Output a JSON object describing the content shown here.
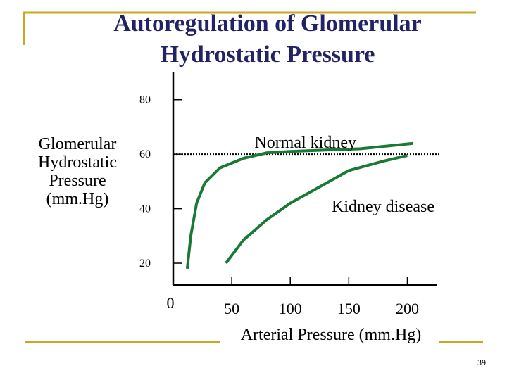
{
  "slide": {
    "title": "Autoregulation of Glomerular Hydrostatic Pressure",
    "page_number": "39",
    "accent_color": "#c8a820",
    "title_color": "#222266"
  },
  "chart_data": {
    "type": "line",
    "title": "Autoregulation of Glomerular Hydrostatic Pressure",
    "xlabel": "Arterial Pressure (mm.Hg)",
    "ylabel": "Glomerular Hydrostatic Pressure (mm.Hg)",
    "ylabel_lines": [
      "Glomerular",
      "Hydrostatic",
      "Pressure",
      "(mm.Hg)"
    ],
    "x_ticks": [
      0,
      50,
      100,
      150,
      200
    ],
    "x_tick_labels": [
      "0",
      "50",
      "100",
      "150",
      "200"
    ],
    "y_ticks": [
      20,
      40,
      60,
      80
    ],
    "y_tick_labels": [
      "20",
      "40",
      "60",
      "80"
    ],
    "xlim": [
      0,
      225
    ],
    "ylim": [
      12,
      90
    ],
    "reference_line_y": 60,
    "grid": false,
    "series": [
      {
        "name": "Normal kidney",
        "color": "#1a7a35",
        "x": [
          12,
          15,
          20,
          27,
          40,
          60,
          80,
          100,
          130,
          160,
          205
        ],
        "y": [
          18,
          30,
          42,
          49.5,
          55,
          58.5,
          60.5,
          61,
          61.5,
          62,
          64
        ]
      },
      {
        "name": "Kidney disease",
        "color": "#1a7a35",
        "x": [
          45,
          60,
          80,
          100,
          125,
          150,
          180,
          200
        ],
        "y": [
          20,
          28.5,
          36,
          42,
          48,
          54,
          57.5,
          59.5
        ]
      }
    ]
  }
}
